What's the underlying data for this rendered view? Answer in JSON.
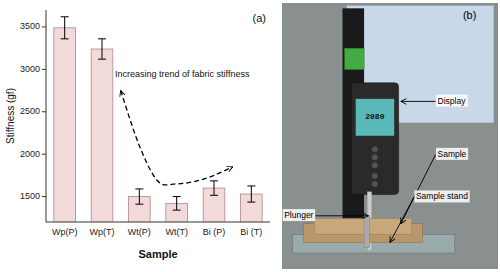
{
  "chart_data": [
    {
      "type": "bar",
      "title": "(a)",
      "categories": [
        "Wp(P)",
        "Wp(T)",
        "Wt(P)",
        "Wt(T)",
        "Bi (P)",
        "Bi (T)"
      ],
      "values": [
        3490,
        3240,
        1500,
        1420,
        1600,
        1530
      ],
      "errors": [
        130,
        120,
        90,
        80,
        85,
        95
      ],
      "color": "#f2dada",
      "ylim": [
        1200,
        3700
      ],
      "yticks": [
        1500,
        2000,
        2500,
        3000,
        3500
      ],
      "ylabel": "Stiffness (gf)",
      "xlabel": "Sample",
      "grid": false,
      "annotations": [
        "Increasing trend of fabric stiffness"
      ],
      "curve_x": [
        1.5,
        2.0,
        2.5,
        3.0,
        3.5,
        4.0,
        4.5
      ],
      "curve_y": [
        2750,
        2100,
        1680,
        1650,
        1680,
        1750,
        1850
      ]
    },
    {
      "type": "image",
      "title": "(b)",
      "annotations": [
        "Display",
        "Sample",
        "Sample stand",
        "Plunger"
      ],
      "display_value": 2080
    }
  ]
}
